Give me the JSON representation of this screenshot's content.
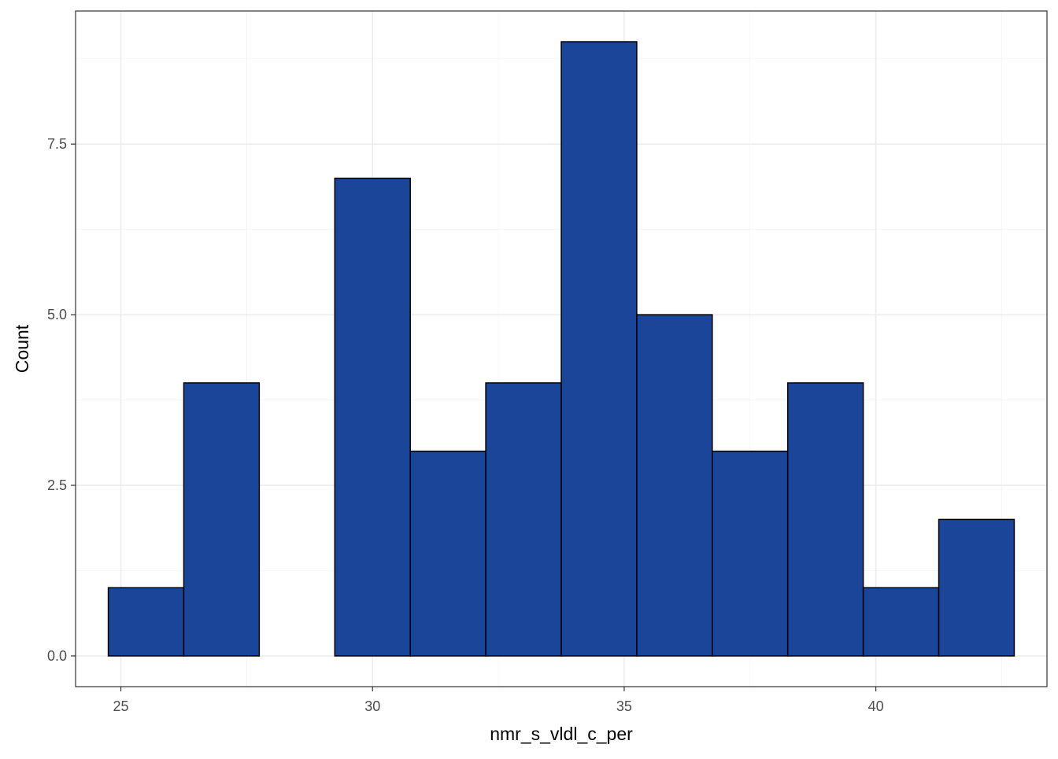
{
  "chart_data": {
    "type": "bar",
    "subtype": "histogram",
    "xlabel": "nmr_s_vldl_c_per",
    "ylabel": "Count",
    "xlim": [
      24.1,
      43.4
    ],
    "ylim": [
      -0.45,
      9.45
    ],
    "x_ticks": [
      25,
      30,
      35,
      40
    ],
    "x_tick_labels": [
      "25",
      "30",
      "35",
      "40"
    ],
    "y_ticks": [
      0,
      2.5,
      5,
      7.5
    ],
    "y_tick_labels": [
      "0.0",
      "2.5",
      "5.0",
      "7.5"
    ],
    "bins": [
      {
        "x0": 24.75,
        "x1": 26.25,
        "count": 1
      },
      {
        "x0": 26.25,
        "x1": 27.75,
        "count": 4
      },
      {
        "x0": 27.75,
        "x1": 29.25,
        "count": 0
      },
      {
        "x0": 29.25,
        "x1": 30.75,
        "count": 7
      },
      {
        "x0": 30.75,
        "x1": 32.25,
        "count": 3
      },
      {
        "x0": 32.25,
        "x1": 33.75,
        "count": 4
      },
      {
        "x0": 33.75,
        "x1": 35.25,
        "count": 9
      },
      {
        "x0": 35.25,
        "x1": 36.75,
        "count": 5
      },
      {
        "x0": 36.75,
        "x1": 38.25,
        "count": 3
      },
      {
        "x0": 38.25,
        "x1": 39.75,
        "count": 4
      },
      {
        "x0": 39.75,
        "x1": 41.25,
        "count": 1
      },
      {
        "x0": 41.25,
        "x1": 42.75,
        "count": 2
      }
    ],
    "grid": true,
    "legend": "none",
    "colors": {
      "fill": "#1a4599",
      "outline": "#000000",
      "panel_border": "#333333",
      "grid_major": "#ebebeb",
      "grid_minor": "#f4f4f4"
    }
  }
}
